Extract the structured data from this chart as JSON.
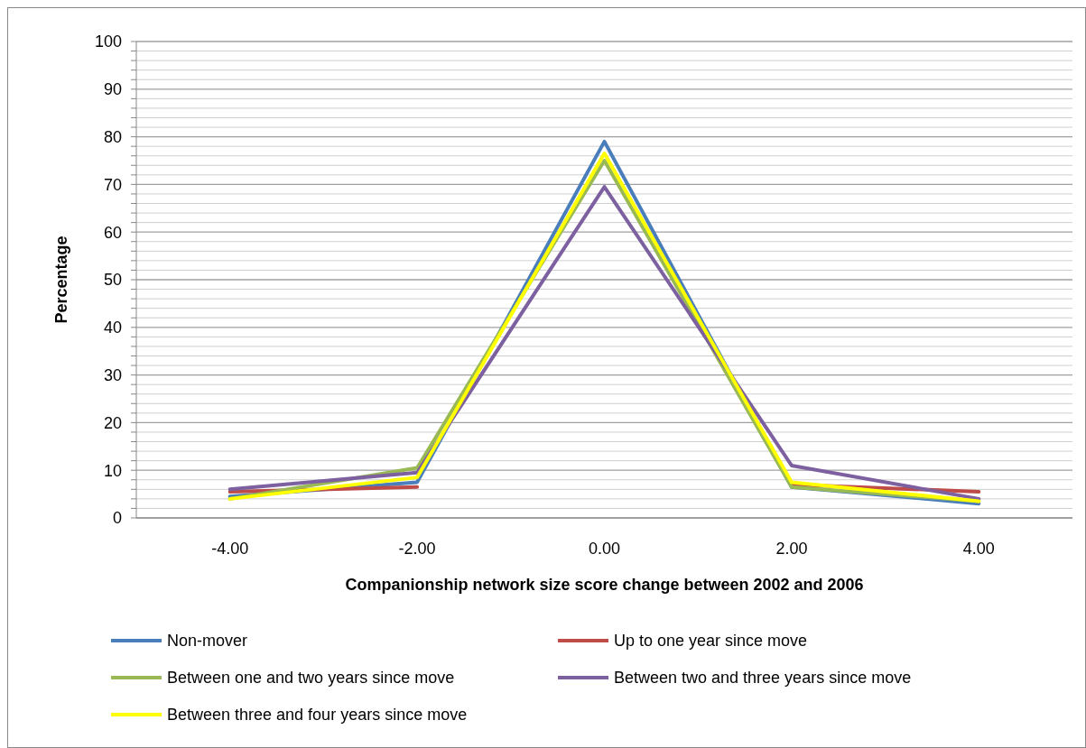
{
  "chart_data": {
    "type": "line",
    "xlabel": "Companionship network size score change between 2002 and 2006",
    "ylabel": "Percentage",
    "categories": [
      "-4.00",
      "-2.00",
      "0.00",
      "2.00",
      "4.00"
    ],
    "series": [
      {
        "name": "Non-mover",
        "color": "#4a7ebb",
        "values": [
          4.5,
          7.5,
          79,
          6.5,
          3
        ]
      },
      {
        "name": "Up to one year since move",
        "color": "#be4b48",
        "values": [
          5.5,
          6.5,
          null,
          7,
          5.5
        ]
      },
      {
        "name": "Between one and two years since move",
        "color": "#98b954",
        "values": [
          4,
          10.5,
          75,
          6.5,
          3.5
        ]
      },
      {
        "name": "Between two and three years since move",
        "color": "#7d60a0",
        "values": [
          6,
          9.5,
          69.5,
          11,
          4
        ]
      },
      {
        "name": "Between three and four years since move",
        "color": "#ffff00",
        "values": [
          4,
          8.5,
          76.5,
          7.5,
          3.5
        ]
      }
    ],
    "ylim": [
      0,
      100
    ],
    "yticks": [
      0,
      {
        "value": 2,
        "label": null
      },
      {
        "value": 4,
        "label": null
      },
      {
        "value": 6,
        "label": null
      },
      {
        "value": 8,
        "label": null
      },
      10,
      {
        "value": 12,
        "label": null
      },
      {
        "value": 14,
        "label": null
      },
      {
        "value": 16,
        "label": null
      },
      {
        "value": 18,
        "label": null
      },
      20,
      {
        "value": 22,
        "label": null
      },
      {
        "value": 24,
        "label": null
      },
      {
        "value": 26,
        "label": null
      },
      {
        "value": 28,
        "label": null
      },
      30,
      {
        "value": 32,
        "label": null
      },
      {
        "value": 34,
        "label": null
      },
      {
        "value": 36,
        "label": null
      },
      {
        "value": 38,
        "label": null
      },
      40,
      {
        "value": 42,
        "label": null
      },
      {
        "value": 44,
        "label": null
      },
      {
        "value": 46,
        "label": null
      },
      {
        "value": 48,
        "label": null
      },
      50,
      {
        "value": 52,
        "label": null
      },
      {
        "value": 54,
        "label": null
      },
      {
        "value": 56,
        "label": null
      },
      {
        "value": 58,
        "label": null
      },
      60,
      {
        "value": 62,
        "label": null
      },
      {
        "value": 64,
        "label": null
      },
      {
        "value": 66,
        "label": null
      },
      {
        "value": 68,
        "label": null
      },
      70,
      {
        "value": 72,
        "label": null
      },
      {
        "value": 74,
        "label": null
      },
      {
        "value": 76,
        "label": null
      },
      {
        "value": 78,
        "label": null
      },
      80,
      {
        "value": 82,
        "label": null
      },
      {
        "value": 84,
        "label": null
      },
      {
        "value": 86,
        "label": null
      },
      {
        "value": 88,
        "label": null
      },
      90,
      {
        "value": 92,
        "label": null
      },
      {
        "value": 94,
        "label": null
      },
      {
        "value": 96,
        "label": null
      },
      {
        "value": 98,
        "label": null
      },
      100
    ],
    "grid": "y",
    "legend": "bottom",
    "marker": "none",
    "line_style": "solid"
  }
}
